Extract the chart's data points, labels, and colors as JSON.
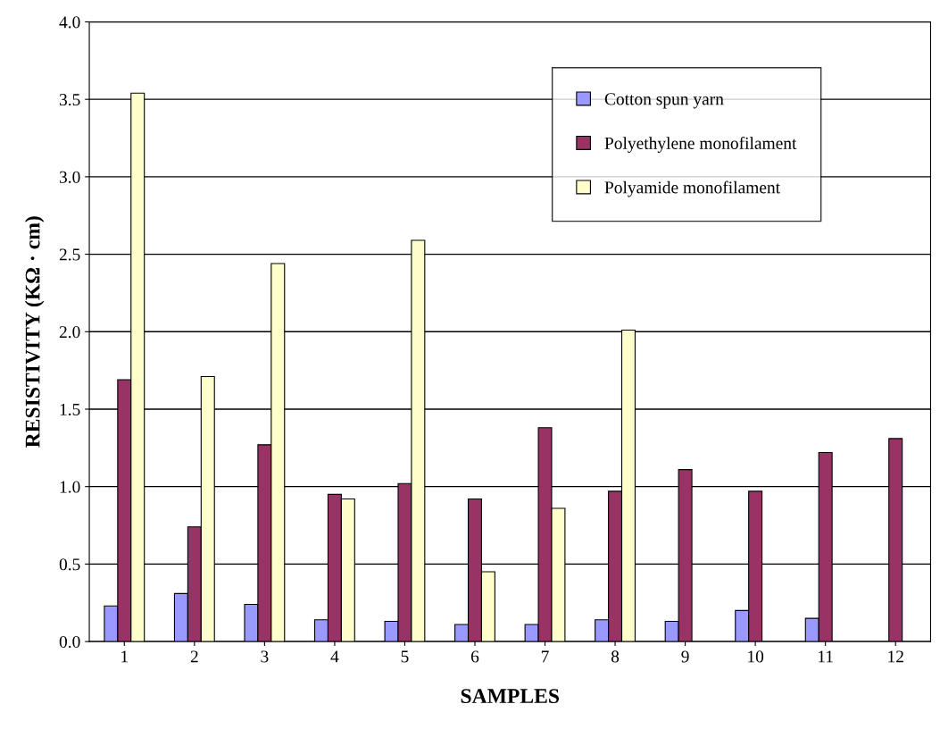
{
  "chart_data": {
    "type": "bar",
    "xlabel": "SAMPLES",
    "ylabel": "RESISTIVITY (KΩ · cm)",
    "categories": [
      "1",
      "2",
      "3",
      "4",
      "5",
      "6",
      "7",
      "8",
      "9",
      "10",
      "11",
      "12"
    ],
    "series": [
      {
        "name": "Cotton spun yarn",
        "color": "#9999ff",
        "values": [
          0.23,
          0.31,
          0.24,
          0.14,
          0.13,
          0.11,
          0.11,
          0.14,
          0.13,
          0.2,
          0.15,
          null
        ]
      },
      {
        "name": "Polyethylene monofilament",
        "color": "#993366",
        "values": [
          1.69,
          0.74,
          1.27,
          0.95,
          1.02,
          0.92,
          1.38,
          0.97,
          1.11,
          0.97,
          1.22,
          1.31
        ]
      },
      {
        "name": "Polyamide monofilament",
        "color": "#ffffcc",
        "values": [
          3.54,
          1.71,
          2.44,
          0.92,
          2.59,
          0.45,
          0.86,
          2.01,
          null,
          null,
          null,
          null
        ]
      }
    ],
    "ylim": [
      0,
      4.0
    ],
    "yticks": [
      {
        "value": 0,
        "label": "0.0"
      },
      {
        "value": 0.5,
        "label": "0.5"
      },
      {
        "value": 1.0,
        "label": "1.0"
      },
      {
        "value": 1.5,
        "label": "1.5"
      },
      {
        "value": 2.0,
        "label": "2.0"
      },
      {
        "value": 2.5,
        "label": "2.5"
      },
      {
        "value": 3.0,
        "label": "3.0"
      },
      {
        "value": 3.5,
        "label": "3.5"
      },
      {
        "value": 4.0,
        "label": "4.0"
      }
    ],
    "grid": "y",
    "legend": "top right"
  }
}
